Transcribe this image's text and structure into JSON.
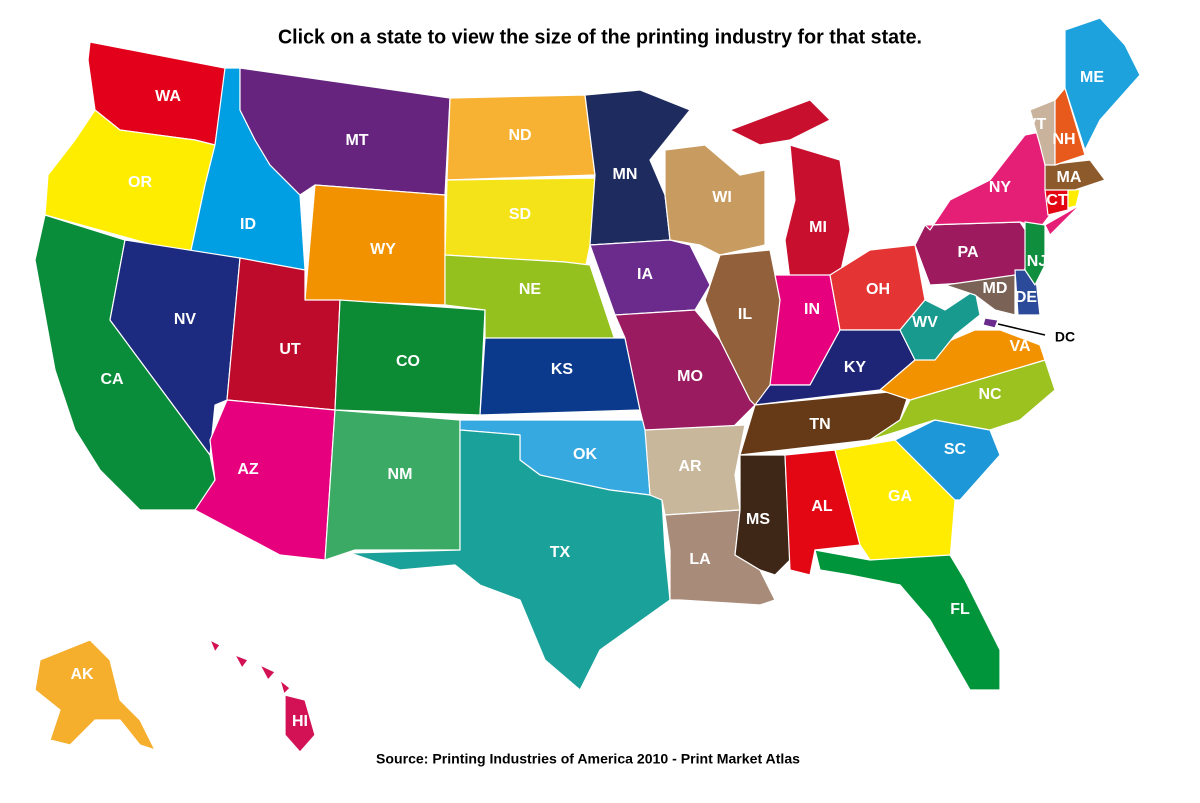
{
  "header": {
    "title": "Click on a state to view the size of the printing industry for that state."
  },
  "states": [
    {
      "label": "WA",
      "color": "#e2001a"
    },
    {
      "label": "OR",
      "color": "#ffed00"
    },
    {
      "label": "CA",
      "color": "#0a8d3a"
    },
    {
      "label": "ID",
      "color": "#009fe3"
    },
    {
      "label": "NV",
      "color": "#1c2b7f"
    },
    {
      "label": "MT",
      "color": "#66247f"
    },
    {
      "label": "WY",
      "color": "#f39200"
    },
    {
      "label": "UT",
      "color": "#be0b2b"
    },
    {
      "label": "AZ",
      "color": "#e6007e"
    },
    {
      "label": "CO",
      "color": "#0d8a34"
    },
    {
      "label": "NM",
      "color": "#3aaa64"
    },
    {
      "label": "ND",
      "color": "#f7b233"
    },
    {
      "label": "SD",
      "color": "#f4e319"
    },
    {
      "label": "NE",
      "color": "#95c11f"
    },
    {
      "label": "KS",
      "color": "#0b3a8c"
    },
    {
      "label": "OK",
      "color": "#36a9e1"
    },
    {
      "label": "TX",
      "color": "#1aa19a"
    },
    {
      "label": "MN",
      "color": "#1d2b5e"
    },
    {
      "label": "IA",
      "color": "#6a2b8c"
    },
    {
      "label": "MO",
      "color": "#9b1b60"
    },
    {
      "label": "AR",
      "color": "#c9b79c"
    },
    {
      "label": "LA",
      "color": "#a88c79"
    },
    {
      "label": "WI",
      "color": "#c89c60"
    },
    {
      "label": "IL",
      "color": "#92603a"
    },
    {
      "label": "MI",
      "color": "#c8102e"
    },
    {
      "label": "IN",
      "color": "#e6007e"
    },
    {
      "label": "OH",
      "color": "#e53434"
    },
    {
      "label": "KY",
      "color": "#1e2577"
    },
    {
      "label": "TN",
      "color": "#663a16"
    },
    {
      "label": "MS",
      "color": "#3f2717"
    },
    {
      "label": "AL",
      "color": "#e30613"
    },
    {
      "label": "GA",
      "color": "#ffec00"
    },
    {
      "label": "FL",
      "color": "#00953b"
    },
    {
      "label": "SC",
      "color": "#1d97d7"
    },
    {
      "label": "NC",
      "color": "#9bc21f"
    },
    {
      "label": "VA",
      "color": "#f39200"
    },
    {
      "label": "WV",
      "color": "#189a8f"
    },
    {
      "label": "PA",
      "color": "#9d1a5f"
    },
    {
      "label": "NY",
      "color": "#e51f76"
    },
    {
      "label": "MD",
      "color": "#7a6356"
    },
    {
      "label": "DE",
      "color": "#2b4a9a"
    },
    {
      "label": "NJ",
      "color": "#0f8e3e"
    },
    {
      "label": "DC",
      "color": "#6a2b8c"
    },
    {
      "label": "CT",
      "color": "#e30613"
    },
    {
      "label": null,
      "color": "#ffed00"
    },
    {
      "label": "MA",
      "color": "#8c5a2b"
    },
    {
      "label": "VT",
      "color": "#c9b39c"
    },
    {
      "label": "NH",
      "color": "#e85a1b"
    },
    {
      "label": "ME",
      "color": "#1da2dd"
    },
    {
      "label": "AK",
      "color": "#f6ae2d"
    },
    {
      "label": "HI",
      "color": "#d31155"
    }
  ],
  "footer": {
    "source": "Source: Printing Industries of America 2010 - Print Market Atlas"
  }
}
